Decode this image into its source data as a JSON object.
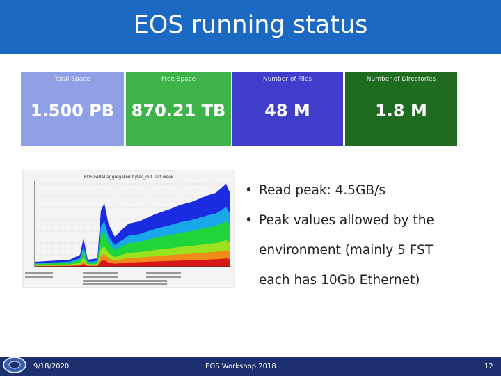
{
  "header": {
    "title": "EOS running status"
  },
  "stats": [
    {
      "label": "Total Space",
      "value": "1.500 PB"
    },
    {
      "label": "Free Space",
      "value": "870.21 TB"
    },
    {
      "label": "Number of Files",
      "value": "48 M"
    },
    {
      "label": "Number of Directories",
      "value": "1.8 M"
    }
  ],
  "graph": {
    "title": "EOS FARM aggregated bytes_out last week"
  },
  "bullets": [
    "Read peak: 4.5GB/s",
    "Peak values allowed by the environment (mainly 5 FST each has 10Gb Ethernet)"
  ],
  "footer": {
    "date": "9/18/2020",
    "event": "EOS Workshop 2018",
    "page": "12"
  }
}
